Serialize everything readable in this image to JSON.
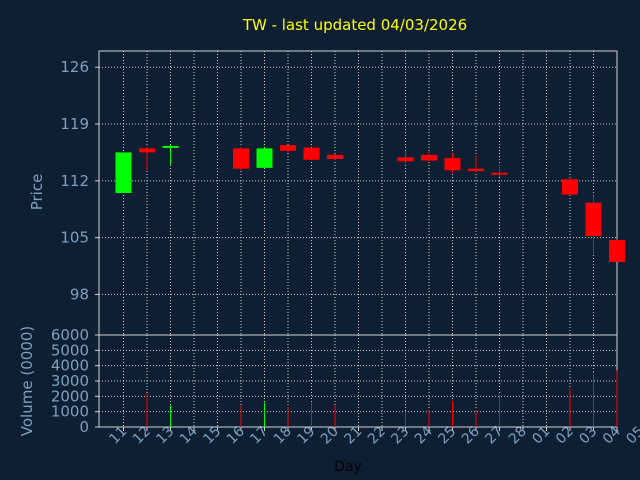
{
  "chart_data": {
    "type": "candlestick",
    "title": "TW - last updated 04/03/2026",
    "xlabel": "Day",
    "price_ylabel": "Price",
    "volume_ylabel": "Volume (0000)",
    "price_ylim": [
      93,
      128
    ],
    "price_ticks": [
      98,
      105,
      112,
      119,
      126
    ],
    "volume_ylim": [
      0,
      6000
    ],
    "volume_ticks": [
      0,
      1000,
      2000,
      3000,
      4000,
      5000,
      6000
    ],
    "grid": true,
    "x_labels": [
      "11",
      "12",
      "13",
      "14",
      "15",
      "16",
      "17",
      "18",
      "19",
      "20",
      "21",
      "22",
      "23",
      "24",
      "25",
      "26",
      "27",
      "28",
      "01",
      "02",
      "03",
      "04",
      "05"
    ],
    "candles": [
      {
        "day": "11",
        "open": 110.5,
        "high": 115.5,
        "low": 110.5,
        "close": 115.5,
        "volume": 0
      },
      {
        "day": "12",
        "open": 116.0,
        "high": 116.2,
        "low": 113.3,
        "close": 115.5,
        "volume": 2200
      },
      {
        "day": "13",
        "open": 116.2,
        "high": 116.4,
        "low": 114.0,
        "close": 116.3,
        "volume": 1400
      },
      {
        "day": "16",
        "open": 116.0,
        "high": 116.2,
        "low": 113.3,
        "close": 113.5,
        "volume": 1400
      },
      {
        "day": "17",
        "open": 113.6,
        "high": 116.2,
        "low": 113.6,
        "close": 116.0,
        "volume": 1600
      },
      {
        "day": "18",
        "open": 116.4,
        "high": 116.4,
        "low": 115.5,
        "close": 115.7,
        "volume": 1300
      },
      {
        "day": "19",
        "open": 116.1,
        "high": 116.1,
        "low": 114.6,
        "close": 114.6,
        "volume": 1600
      },
      {
        "day": "20",
        "open": 115.2,
        "high": 115.3,
        "low": 114.6,
        "close": 114.7,
        "volume": 1400
      },
      {
        "day": "23",
        "open": 114.9,
        "high": 115.7,
        "low": 114.1,
        "close": 114.4,
        "volume": 1000
      },
      {
        "day": "24",
        "open": 115.2,
        "high": 115.6,
        "low": 114.4,
        "close": 114.5,
        "volume": 1100
      },
      {
        "day": "25",
        "open": 114.8,
        "high": 115.4,
        "low": 113.0,
        "close": 113.3,
        "volume": 1700
      },
      {
        "day": "26",
        "open": 113.5,
        "high": 115.1,
        "low": 113.1,
        "close": 113.2,
        "volume": 1100
      },
      {
        "day": "27",
        "open": 113.0,
        "high": 114.0,
        "low": 112.5,
        "close": 112.8,
        "volume": 2100
      },
      {
        "day": "02",
        "open": 112.2,
        "high": 112.3,
        "low": 110.2,
        "close": 110.3,
        "volume": 2500
      },
      {
        "day": "03",
        "open": 109.3,
        "high": 110.2,
        "low": 103.0,
        "close": 105.2,
        "volume": 3600
      },
      {
        "day": "04",
        "open": 104.7,
        "high": 104.8,
        "low": 102.0,
        "close": 102.0,
        "volume": 3700
      }
    ],
    "colors": {
      "up": "#00ff00",
      "down": "#ff0000",
      "grid": "#d0d0d0",
      "axis": "#d0d0d0",
      "tick_text": "#7f9fc0",
      "title": "#ffff00",
      "background": "#0f1f33",
      "xlabel": "#000000"
    }
  }
}
